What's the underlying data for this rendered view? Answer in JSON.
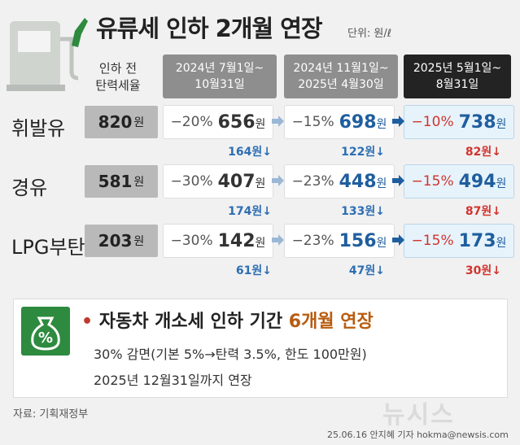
{
  "title": "유류세 인하 2개월 연장",
  "unit": "단위: 원/ℓ",
  "header": {
    "base_line1": "인하 전",
    "base_line2": "탄력세율",
    "periods": [
      {
        "line1": "2024년 7월1일~",
        "line2": "10월31일"
      },
      {
        "line1": "2024년 11월1일~",
        "line2": "2025년 4월30일"
      },
      {
        "line1": "2025년 5월1일~",
        "line2": "8월31일"
      }
    ]
  },
  "rows": [
    {
      "label": "휘발유",
      "base": "820",
      "won": "원",
      "cells": [
        {
          "pct": "−20%",
          "price": "656",
          "drop": "164원↓"
        },
        {
          "pct": "−15%",
          "price": "698",
          "drop": "122원↓"
        },
        {
          "pct": "−10%",
          "price": "738",
          "drop": "82원↓"
        }
      ]
    },
    {
      "label": "경유",
      "base": "581",
      "won": "원",
      "cells": [
        {
          "pct": "−30%",
          "price": "407",
          "drop": "174원↓"
        },
        {
          "pct": "−23%",
          "price": "448",
          "drop": "133원↓"
        },
        {
          "pct": "−15%",
          "price": "494",
          "drop": "87원↓"
        }
      ]
    },
    {
      "label": "LPG부탄",
      "base": "203",
      "won": "원",
      "cells": [
        {
          "pct": "−30%",
          "price": "142",
          "drop": "61원↓"
        },
        {
          "pct": "−23%",
          "price": "156",
          "drop": "47원↓"
        },
        {
          "pct": "−15%",
          "price": "173",
          "drop": "30원↓"
        }
      ]
    }
  ],
  "bottom": {
    "bullet": "•",
    "title_main": "자동차 개소세 인하 기간",
    "title_highlight": "6개월 연장",
    "line1": "30% 감면(기본 5%→탄력 3.5%, 한도 100만원)",
    "line2": "2025년 12월31일까지 연장",
    "icon_symbol": "%"
  },
  "source": "자료: 기획재정부",
  "credit": "25.06.16 안지혜 기자 hokma@newsis.com",
  "logo": "뉴시스",
  "colors": {
    "accent_blue": "#1f5e9e",
    "accent_red": "#d1342f",
    "green": "#2d8a3e",
    "highlight": "#b85c10"
  }
}
